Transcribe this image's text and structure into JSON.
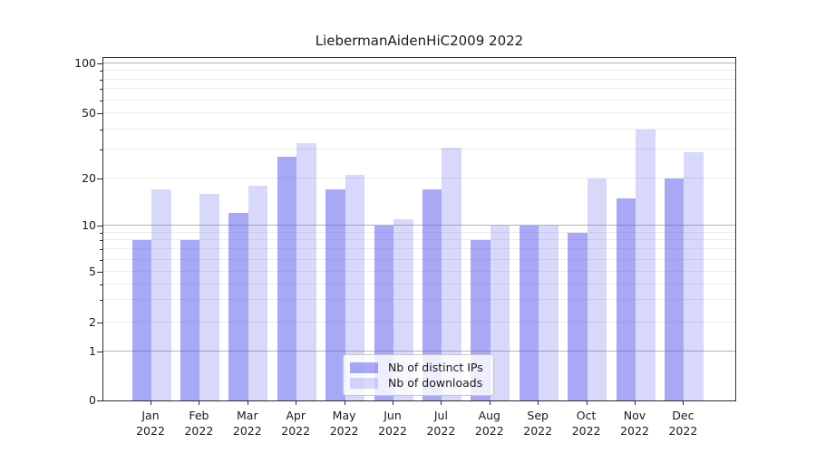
{
  "chart_data": {
    "type": "bar",
    "title": "LiebermanAidenHiC2009 2022",
    "categories": [
      "Jan 2022",
      "Feb 2022",
      "Mar 2022",
      "Apr 2022",
      "May 2022",
      "Jun 2022",
      "Jul 2022",
      "Aug 2022",
      "Sep 2022",
      "Oct 2022",
      "Nov 2022",
      "Dec 2022"
    ],
    "series": [
      {
        "name": "Nb of distinct IPs",
        "values": [
          8,
          8,
          12,
          27,
          17,
          10,
          17,
          8,
          10,
          9,
          15,
          20
        ],
        "color": "rgba(100,100,237,0.56)"
      },
      {
        "name": "Nb of downloads",
        "values": [
          17,
          16,
          18,
          33,
          21,
          11,
          31,
          10,
          10,
          20,
          40,
          29
        ],
        "color": "rgba(100,100,237,0.25)"
      }
    ],
    "y_axis": {
      "scale": "log-like",
      "tick_labels": [
        "0",
        "1",
        "2",
        "5",
        "10",
        "20",
        "50",
        "100"
      ],
      "tick_values": [
        0,
        1,
        2,
        5,
        10,
        20,
        50,
        100
      ],
      "minor_tick_values": [
        3,
        4,
        6,
        7,
        8,
        9,
        30,
        40,
        60,
        70,
        80,
        90
      ],
      "major_grid_values": [
        1,
        10,
        100
      ],
      "ylim": [
        0,
        110
      ]
    },
    "legend": {
      "position": "lower center"
    },
    "grid": true,
    "colors": {
      "major_grid": "#b5b5b5",
      "minor_grid": "#ebebeb",
      "spine": "#2b2b2b",
      "text": "#1a1a1a"
    }
  }
}
